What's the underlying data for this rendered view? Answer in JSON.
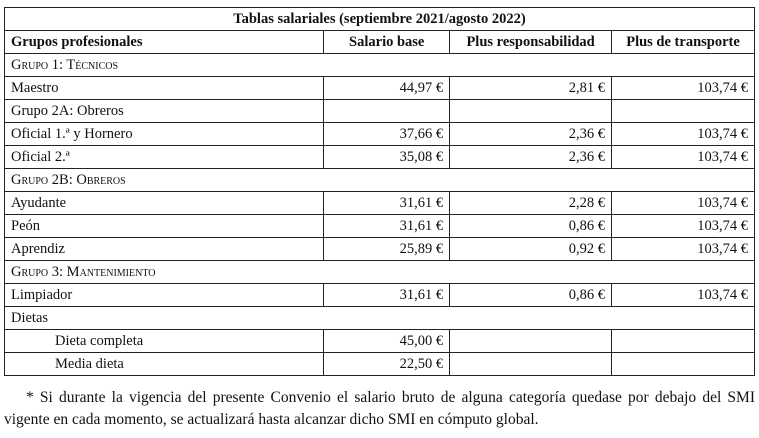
{
  "table": {
    "title": "Tablas salariales (septiembre 2021/agosto 2022)",
    "header": [
      "Grupos profesionales",
      "Salario base",
      "Plus responsabilidad",
      "Plus de transporte"
    ],
    "rows": [
      [
        "Grupo 1: Técnicos"
      ],
      [
        "Maestro",
        "44,97 €",
        "2,81 €",
        "103,74 €"
      ],
      [
        "Grupo 2A: Obreros"
      ],
      [
        "Oficial 1.ª y Hornero",
        "37,66 €",
        "2,36 €",
        "103,74 €"
      ],
      [
        "Oficial 2.ª",
        "35,08 €",
        "2,36 €",
        "103,74 €"
      ],
      [
        "Grupo 2B: Obreros"
      ],
      [
        "Ayudante",
        "31,61 €",
        "2,28 €",
        "103,74 €"
      ],
      [
        "Peón",
        "31,61 €",
        "0,86 €",
        "103,74 €"
      ],
      [
        "Aprendiz",
        "25,89 €",
        "0,92 €",
        "103,74 €"
      ],
      [
        "Grupo 3: Mantenimiento"
      ],
      [
        "Limpiador",
        "31,61 €",
        "0,86 €",
        "103,74 €"
      ],
      [
        "Dietas"
      ],
      [
        "Dieta completa",
        "45,00 €"
      ],
      [
        "Media dieta",
        "22,50 €"
      ]
    ]
  },
  "footnote": "* Si durante la vigencia del presente Convenio el salario bruto de alguna categoría quedase por debajo del SMI vigente en cada momento, se actualizará hasta alcanzar dicho SMI en cómputo global."
}
